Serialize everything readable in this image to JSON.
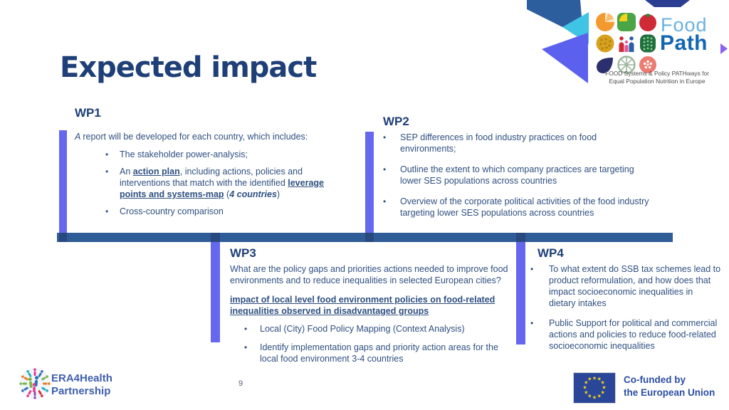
{
  "slide": {
    "title": "Expected impact",
    "page_number": "9"
  },
  "wp1": {
    "heading": "WP1",
    "intro": [
      {
        "text": "A ",
        "italic": true
      },
      {
        "text": "report will be developed for each country, which includes:"
      }
    ],
    "bullets": [
      "The stakeholder power-analysis;",
      [
        {
          "text": "An "
        },
        {
          "text": "action plan",
          "bold": true,
          "underline": true
        },
        {
          "text": ", including actions, policies and interventions that match with the identified "
        },
        {
          "text": "leverage points and systems-map",
          "bold": true,
          "underline": true
        },
        {
          "text": " ("
        },
        {
          "text": "4 countries",
          "bold": true,
          "italic": true
        },
        {
          "text": ")"
        }
      ],
      "Cross-country comparison"
    ]
  },
  "wp2": {
    "heading": "WP2",
    "bullets": [
      "SEP differences in food industry practices on food environments;",
      "Outline the extent to which company practices are targeting lower SES populations across countries",
      "Overview of the corporate political activities of the food industry targeting lower SES populations across countries"
    ]
  },
  "wp3": {
    "heading": "WP3",
    "intro": "What are the policy gaps and priorities actions needed to improve food environments and to reduce inequalities in selected European cities?",
    "highlight": "impact of local level food environment policies on food-related inequalities observed in disadvantaged groups",
    "bullets": [
      "Local (City) Food Policy Mapping (Context Analysis)",
      "Identify implementation gaps and priority action areas for the local food environment 3-4 countries"
    ]
  },
  "wp4": {
    "heading": "WP4",
    "bullets": [
      "To what extent do SSB tax schemes lead to product reformulation, and how does that impact socioeconomic inequalities in dietary intakes",
      "Public Support for political and commercial actions and policies to reduce food-related socioeconomic inequalities"
    ]
  },
  "foodpath_logo": {
    "word1": "Food",
    "word2": "Path",
    "tagline1": "FOOD Systems & Policy PATHways for",
    "tagline2": "Equal Population Nutrition in Europe"
  },
  "era_logo": {
    "line1": "ERA4Health",
    "line2": "Partnership",
    "person_colors": [
      "#e23a8e",
      "#2f6fb6",
      "#7ab648",
      "#e87f26",
      "#20aebd",
      "#d8252f",
      "#8e4fa8"
    ]
  },
  "eu_logo": {
    "line1": "Co-funded by",
    "line2": "the European Union",
    "star_count": 12,
    "star_glyph": "★",
    "flag_color": "#2a4699",
    "star_color": "#ffd617"
  },
  "colors": {
    "title_text": "#1e3f77",
    "body_text": "#2e4f80",
    "vertical_bar": "#6568ef",
    "horizontal_bar": "#2e5c96",
    "bar_intersection": "#27497e"
  }
}
